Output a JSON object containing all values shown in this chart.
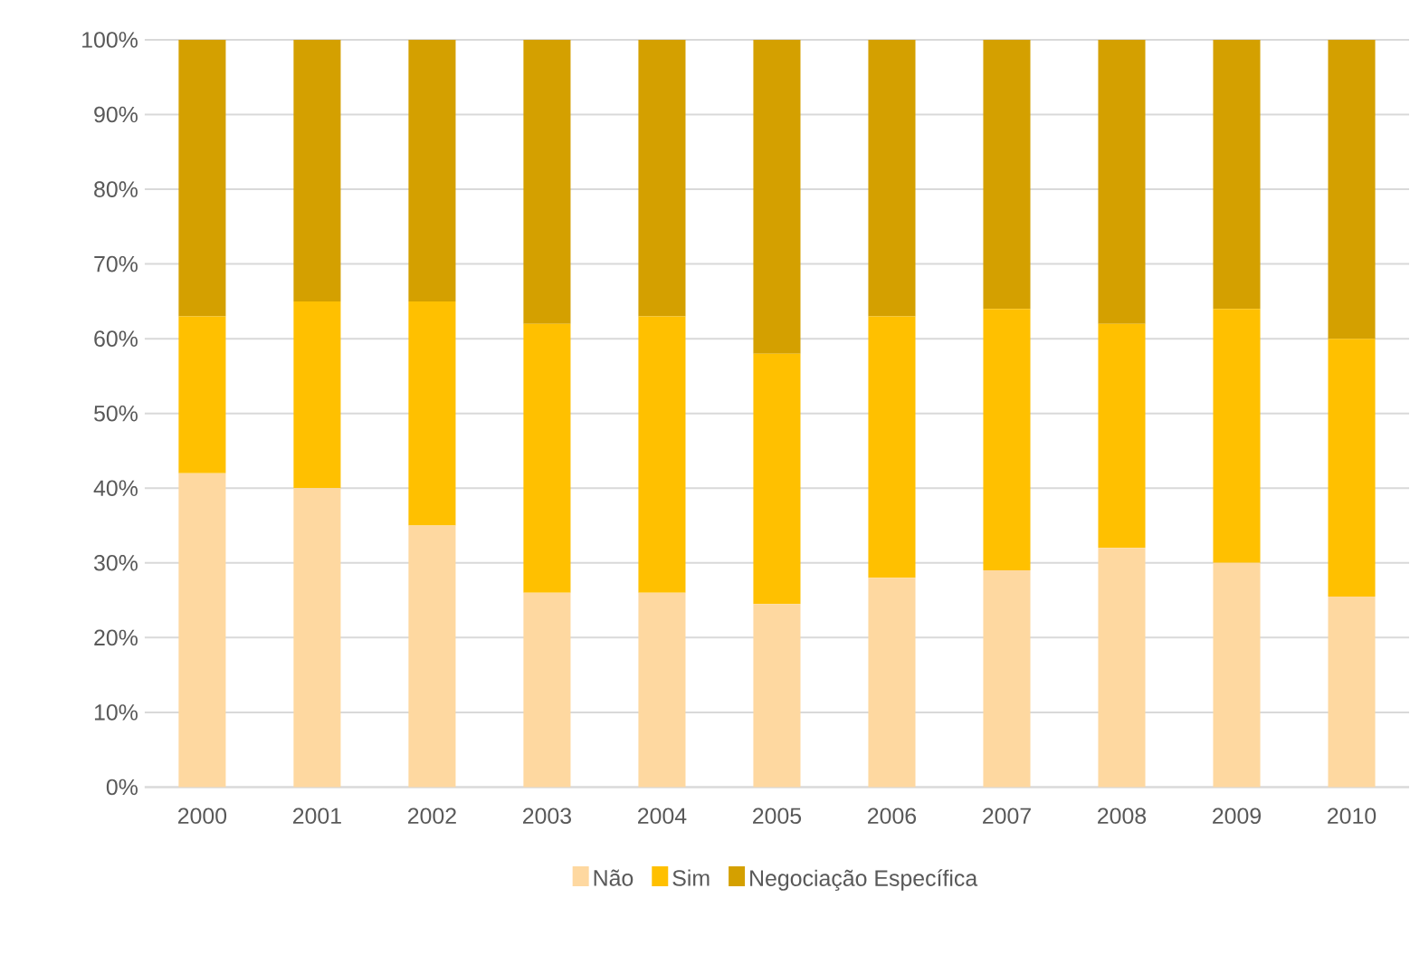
{
  "chart_data": {
    "type": "bar",
    "stacked": true,
    "categories": [
      "2000",
      "2001",
      "2002",
      "2003",
      "2004",
      "2005",
      "2006",
      "2007",
      "2008",
      "2009",
      "2010"
    ],
    "series": [
      {
        "name": "Não",
        "color": "#fed8a0",
        "values": [
          42,
          40,
          35,
          26,
          26,
          24.5,
          28,
          29,
          32,
          30,
          25.5
        ]
      },
      {
        "name": "Sim",
        "color": "#ffc000",
        "values": [
          21,
          25,
          30,
          36,
          37,
          33.5,
          35,
          35,
          30,
          34,
          34.5
        ]
      },
      {
        "name": "Negociação Específica",
        "color": "#d4a000",
        "values": [
          37,
          35,
          35,
          38,
          37,
          42,
          37,
          36,
          38,
          36,
          40
        ]
      }
    ],
    "ylim": [
      0,
      100
    ],
    "yticks": [
      {
        "value": 0,
        "label": "0%"
      },
      {
        "value": 10,
        "label": "10%"
      },
      {
        "value": 20,
        "label": "20%"
      },
      {
        "value": 30,
        "label": "30%"
      },
      {
        "value": 40,
        "label": "40%"
      },
      {
        "value": 50,
        "label": "50%"
      },
      {
        "value": 60,
        "label": "60%"
      },
      {
        "value": 70,
        "label": "70%"
      },
      {
        "value": 80,
        "label": "80%"
      },
      {
        "value": 90,
        "label": "90%"
      },
      {
        "value": 100,
        "label": "100%"
      }
    ],
    "grid": "y",
    "legend": "bottom"
  }
}
